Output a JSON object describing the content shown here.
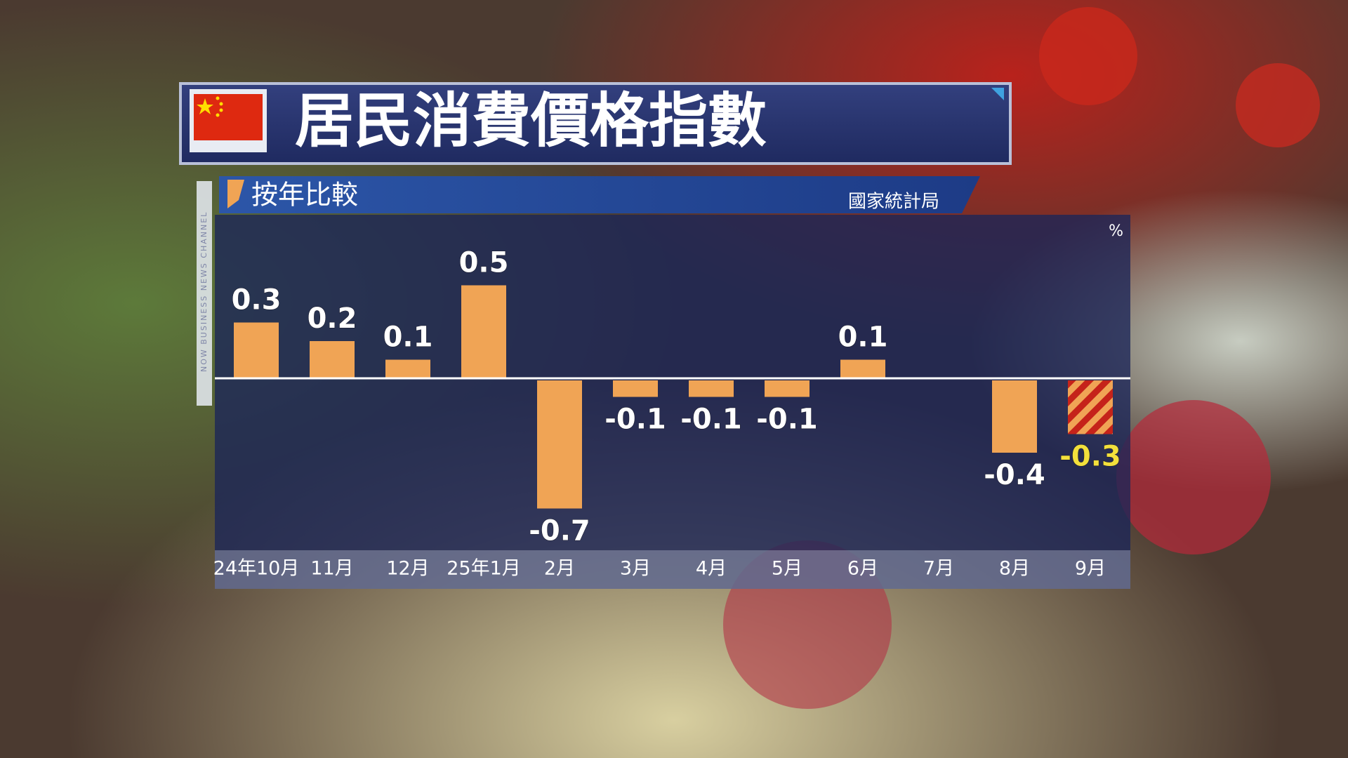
{
  "chart_data": {
    "type": "bar",
    "title": "居民消費價格指數",
    "subtitle": "按年比較",
    "source": "國家統計局",
    "unit": "%",
    "channel": "NOW BUSINESS NEWS CHANNEL",
    "categories": [
      "24年10月",
      "11月",
      "12月",
      "25年1月",
      "2月",
      "3月",
      "4月",
      "5月",
      "6月",
      "7月",
      "8月",
      "9月"
    ],
    "values": [
      0.3,
      0.2,
      0.1,
      0.5,
      -0.7,
      -0.1,
      -0.1,
      -0.1,
      0.1,
      null,
      -0.4,
      -0.3
    ],
    "color": "#f0a455",
    "highlight_index": 11,
    "highlight_label_color": "#f3e03c",
    "ylim": [
      -0.9,
      0.7
    ]
  }
}
